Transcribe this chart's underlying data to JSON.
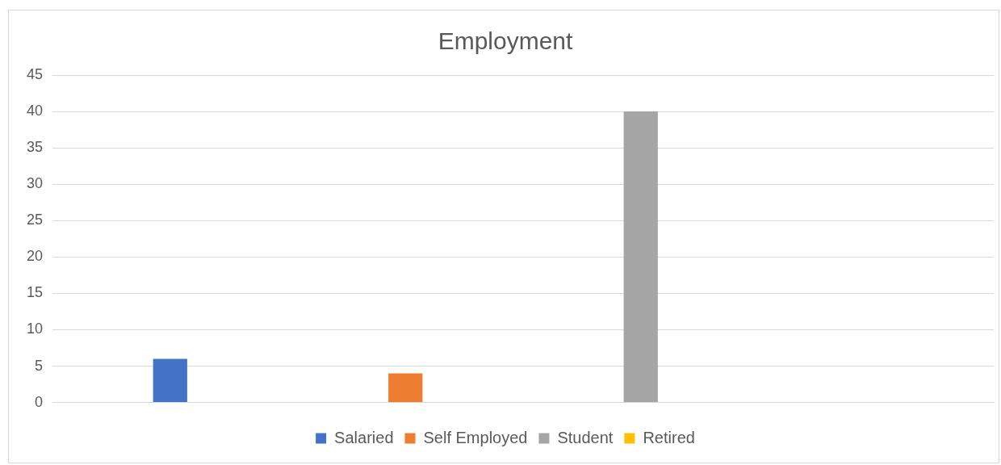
{
  "chart_data": {
    "type": "bar",
    "title": "Employment",
    "categories": [
      null
    ],
    "series": [
      {
        "name": "Salaried",
        "color": "#4472c4",
        "values": [
          6
        ]
      },
      {
        "name": "Self Employed",
        "color": "#ed7d31",
        "values": [
          4
        ]
      },
      {
        "name": "Student",
        "color": "#a5a5a5",
        "values": [
          40
        ]
      },
      {
        "name": "Retired",
        "color": "#ffc000",
        "values": [
          0
        ]
      }
    ],
    "ylim": [
      0,
      45
    ],
    "yticks": [
      0,
      5,
      10,
      15,
      20,
      25,
      30,
      35,
      40,
      45
    ],
    "grid": "y",
    "legend": "bottom"
  }
}
